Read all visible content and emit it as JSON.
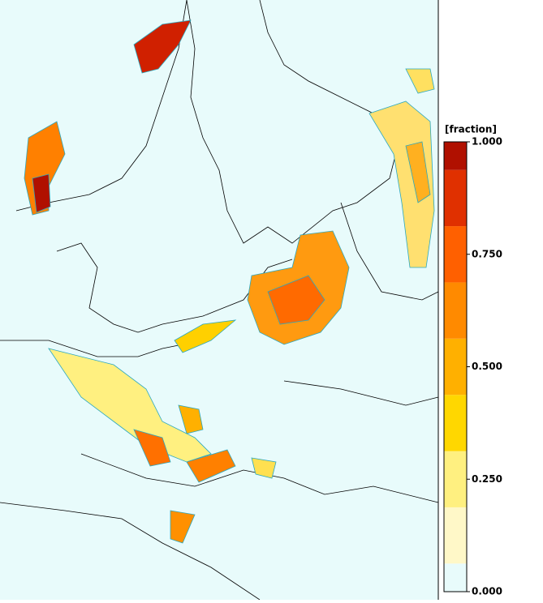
{
  "colorbar": {
    "label": "[fraction]",
    "bounds": [
      0,
      0.0625,
      0.1875,
      0.3125,
      0.4375,
      0.5625,
      0.6875,
      0.8125,
      0.9375,
      1
    ],
    "colors": [
      "#e8fbfb",
      "#fff8c8",
      "#fff080",
      "#ffd700",
      "#ffb000",
      "#ff8a00",
      "#ff6000",
      "#e03000",
      "#b01000"
    ],
    "ticks": [
      {
        "value": 1,
        "label": "1.000"
      },
      {
        "value": 0.75,
        "label": "0.750"
      },
      {
        "value": 0.5,
        "label": "0.500"
      },
      {
        "value": 0.25,
        "label": "0.250"
      },
      {
        "value": 0,
        "label": "0.000"
      }
    ]
  }
}
